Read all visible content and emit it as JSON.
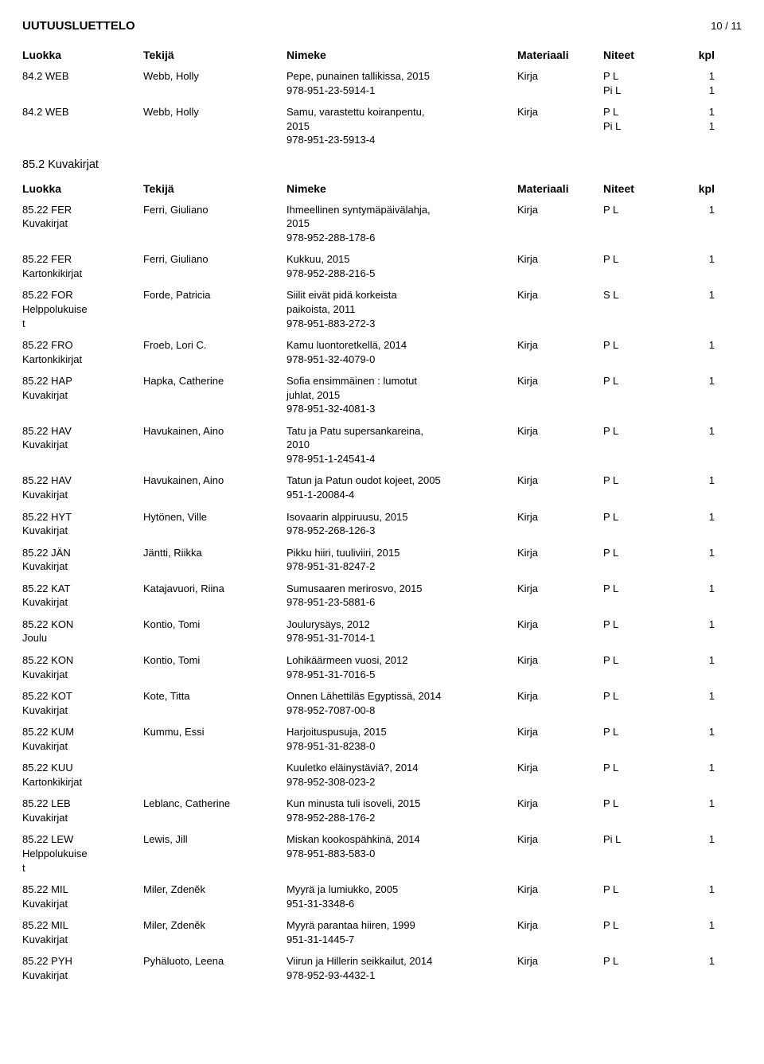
{
  "header": {
    "title": "UUTUUSLUETTELO",
    "page": "10 / 11"
  },
  "columns": {
    "luokka": "Luokka",
    "tekija": "Tekijä",
    "nimeke": "Nimeke",
    "materiaali": "Materiaali",
    "niteet": "Niteet",
    "kpl": "kpl"
  },
  "section1": {
    "rows": [
      {
        "luokka": [
          "84.2 WEB"
        ],
        "tekija": "Webb, Holly",
        "nimeke": [
          "Pepe, punainen tallikissa, 2015",
          "978-951-23-5914-1"
        ],
        "mat": "Kirja",
        "niteet": [
          "P L",
          "Pi L"
        ],
        "kpl": [
          "1",
          "1"
        ]
      },
      {
        "luokka": [
          "84.2 WEB"
        ],
        "tekija": "Webb, Holly",
        "nimeke": [
          "Samu, varastettu koiranpentu,",
          "2015",
          "978-951-23-5913-4"
        ],
        "mat": "Kirja",
        "niteet": [
          "P L",
          "Pi L"
        ],
        "kpl": [
          "1",
          "1"
        ]
      }
    ]
  },
  "section2": {
    "title": "85.2 Kuvakirjat",
    "rows": [
      {
        "luokka": [
          "85.22 FER",
          "Kuvakirjat"
        ],
        "tekija": "Ferri, Giuliano",
        "nimeke": [
          "Ihmeellinen syntymäpäivälahja,",
          "2015",
          "978-952-288-178-6"
        ],
        "mat": "Kirja",
        "niteet": [
          "P L"
        ],
        "kpl": [
          "1"
        ]
      },
      {
        "luokka": [
          "85.22 FER",
          "Kartonkikirjat"
        ],
        "tekija": "Ferri, Giuliano",
        "nimeke": [
          "Kukkuu, 2015",
          "978-952-288-216-5"
        ],
        "mat": "Kirja",
        "niteet": [
          "P L"
        ],
        "kpl": [
          "1"
        ]
      },
      {
        "luokka": [
          "85.22 FOR",
          "Helppolukuise",
          "t"
        ],
        "tekija": "Forde, Patricia",
        "nimeke": [
          "Siilit eivät pidä korkeista",
          "paikoista, 2011",
          "978-951-883-272-3"
        ],
        "mat": "Kirja",
        "niteet": [
          "S L"
        ],
        "kpl": [
          "1"
        ]
      },
      {
        "luokka": [
          "85.22 FRO",
          "Kartonkikirjat"
        ],
        "tekija": "Froeb, Lori C.",
        "nimeke": [
          "Kamu luontoretkellä, 2014",
          "978-951-32-4079-0"
        ],
        "mat": "Kirja",
        "niteet": [
          "P L"
        ],
        "kpl": [
          "1"
        ]
      },
      {
        "luokka": [
          "85.22 HAP",
          "Kuvakirjat"
        ],
        "tekija": "Hapka, Catherine",
        "nimeke": [
          "Sofia ensimmäinen : lumotut",
          "juhlat, 2015",
          "978-951-32-4081-3"
        ],
        "mat": "Kirja",
        "niteet": [
          "P L"
        ],
        "kpl": [
          "1"
        ]
      },
      {
        "luokka": [
          "85.22 HAV",
          "Kuvakirjat"
        ],
        "tekija": "Havukainen, Aino",
        "nimeke": [
          "Tatu ja Patu supersankareina,",
          "2010",
          "978-951-1-24541-4"
        ],
        "mat": "Kirja",
        "niteet": [
          "P L"
        ],
        "kpl": [
          "1"
        ]
      },
      {
        "luokka": [
          "85.22 HAV",
          "Kuvakirjat"
        ],
        "tekija": "Havukainen, Aino",
        "nimeke": [
          "Tatun ja Patun oudot kojeet, 2005",
          "951-1-20084-4"
        ],
        "mat": "Kirja",
        "niteet": [
          "P L"
        ],
        "kpl": [
          "1"
        ]
      },
      {
        "luokka": [
          "85.22 HYT",
          "Kuvakirjat"
        ],
        "tekija": "Hytönen, Ville",
        "nimeke": [
          "Isovaarin alppiruusu, 2015",
          "978-952-268-126-3"
        ],
        "mat": "Kirja",
        "niteet": [
          "P L"
        ],
        "kpl": [
          "1"
        ]
      },
      {
        "luokka": [
          "85.22 JÄN",
          "Kuvakirjat"
        ],
        "tekija": "Jäntti, Riikka",
        "nimeke": [
          "Pikku hiiri, tuuliviiri, 2015",
          "978-951-31-8247-2"
        ],
        "mat": "Kirja",
        "niteet": [
          "P L"
        ],
        "kpl": [
          "1"
        ]
      },
      {
        "luokka": [
          "85.22 KAT",
          "Kuvakirjat"
        ],
        "tekija": "Katajavuori, Riina",
        "nimeke": [
          "Sumusaaren merirosvo, 2015",
          "978-951-23-5881-6"
        ],
        "mat": "Kirja",
        "niteet": [
          "P L"
        ],
        "kpl": [
          "1"
        ]
      },
      {
        "luokka": [
          "85.22 KON",
          "Joulu"
        ],
        "tekija": "Kontio, Tomi",
        "nimeke": [
          "Joulurysäys, 2012",
          "978-951-31-7014-1"
        ],
        "mat": "Kirja",
        "niteet": [
          "P L"
        ],
        "kpl": [
          "1"
        ]
      },
      {
        "luokka": [
          "85.22 KON",
          "Kuvakirjat"
        ],
        "tekija": "Kontio, Tomi",
        "nimeke": [
          "Lohikäärmeen vuosi, 2012",
          "978-951-31-7016-5"
        ],
        "mat": "Kirja",
        "niteet": [
          "P L"
        ],
        "kpl": [
          "1"
        ]
      },
      {
        "luokka": [
          "85.22 KOT",
          "Kuvakirjat"
        ],
        "tekija": "Kote, Titta",
        "nimeke": [
          "Onnen Lähettiläs Egyptissä, 2014",
          "978-952-7087-00-8"
        ],
        "mat": "Kirja",
        "niteet": [
          "P L"
        ],
        "kpl": [
          "1"
        ]
      },
      {
        "luokka": [
          "85.22 KUM",
          "Kuvakirjat"
        ],
        "tekija": "Kummu, Essi",
        "nimeke": [
          "Harjoituspusuja, 2015",
          "978-951-31-8238-0"
        ],
        "mat": "Kirja",
        "niteet": [
          "P L"
        ],
        "kpl": [
          "1"
        ]
      },
      {
        "luokka": [
          "85.22 KUU",
          "Kartonkikirjat"
        ],
        "tekija": "",
        "nimeke": [
          "Kuuletko eläinystäviä?, 2014",
          "978-952-308-023-2"
        ],
        "mat": "Kirja",
        "niteet": [
          "P L"
        ],
        "kpl": [
          "1"
        ]
      },
      {
        "luokka": [
          "85.22 LEB",
          "Kuvakirjat"
        ],
        "tekija": "Leblanc, Catherine",
        "nimeke": [
          "Kun minusta tuli isoveli, 2015",
          "978-952-288-176-2"
        ],
        "mat": "Kirja",
        "niteet": [
          "P L"
        ],
        "kpl": [
          "1"
        ]
      },
      {
        "luokka": [
          "85.22 LEW",
          "Helppolukuise",
          "t"
        ],
        "tekija": "Lewis, Jill",
        "nimeke": [
          "Miskan kookospähkinä, 2014",
          "978-951-883-583-0"
        ],
        "mat": "Kirja",
        "niteet": [
          "Pi L"
        ],
        "kpl": [
          "1"
        ]
      },
      {
        "luokka": [
          "85.22 MIL",
          "Kuvakirjat"
        ],
        "tekija": "Miler, Zdeněk",
        "nimeke": [
          "Myyrä ja lumiukko, 2005",
          "951-31-3348-6"
        ],
        "mat": "Kirja",
        "niteet": [
          "P L"
        ],
        "kpl": [
          "1"
        ]
      },
      {
        "luokka": [
          "85.22 MIL",
          "Kuvakirjat"
        ],
        "tekija": "Miler, Zdeněk",
        "nimeke": [
          "Myyrä parantaa hiiren, 1999",
          "951-31-1445-7"
        ],
        "mat": "Kirja",
        "niteet": [
          "P L"
        ],
        "kpl": [
          "1"
        ]
      },
      {
        "luokka": [
          "85.22 PYH",
          "Kuvakirjat"
        ],
        "tekija": "Pyhäluoto, Leena",
        "nimeke": [
          "Viirun ja Hillerin seikkailut, 2014",
          "978-952-93-4432-1"
        ],
        "mat": "Kirja",
        "niteet": [
          "P L"
        ],
        "kpl": [
          "1"
        ]
      }
    ]
  }
}
